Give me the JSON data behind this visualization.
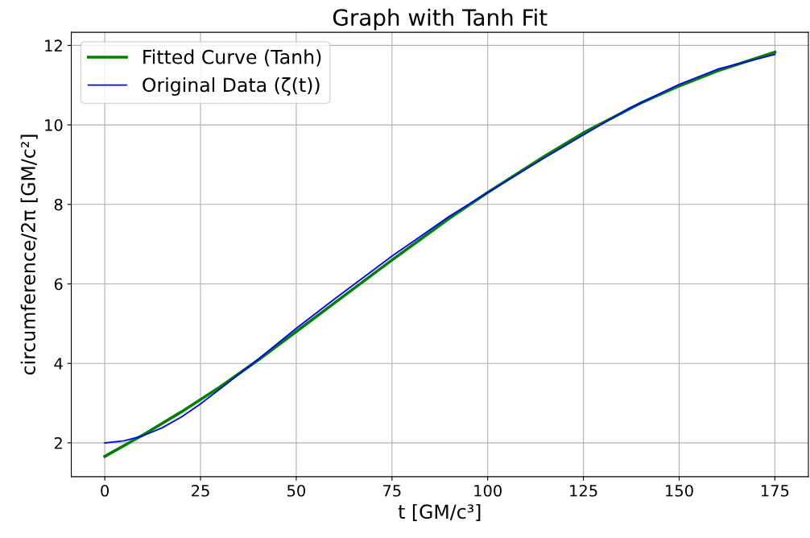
{
  "chart_data": {
    "type": "line",
    "title": "Graph with Tanh Fit",
    "xlabel": "t [GM/c³]",
    "ylabel": "circumference/2π [GM/c²]",
    "xlim": [
      -8.75,
      183.75
    ],
    "xticks": [
      0,
      25,
      50,
      75,
      100,
      125,
      150,
      175
    ],
    "ylim": [
      1.15,
      12.33
    ],
    "yticks": [
      2,
      4,
      6,
      8,
      10,
      12
    ],
    "grid": true,
    "legend": "top left",
    "marker": "none",
    "line_style": "solid",
    "series": [
      {
        "name": "Fitted Curve (Tanh)",
        "color": "#008000",
        "x": [
          0,
          10,
          20,
          30,
          40,
          50,
          60,
          75,
          90,
          100,
          115,
          125,
          140,
          150,
          160,
          175
        ],
        "values": [
          1.66,
          2.2,
          2.78,
          3.4,
          4.08,
          4.8,
          5.52,
          6.6,
          7.65,
          8.3,
          9.22,
          9.8,
          10.55,
          10.98,
          11.36,
          11.83
        ]
      },
      {
        "name": "Original Data (ζ(t))",
        "color": "#0000ff",
        "x": [
          0,
          5,
          10,
          15,
          20,
          25,
          30,
          40,
          50,
          60,
          75,
          90,
          100,
          115,
          125,
          137,
          150,
          160,
          168,
          175
        ],
        "values": [
          2.0,
          2.05,
          2.18,
          2.38,
          2.65,
          2.98,
          3.35,
          4.1,
          4.88,
          5.62,
          6.7,
          7.7,
          8.3,
          9.18,
          9.75,
          10.42,
          11.02,
          11.4,
          11.6,
          11.77
        ]
      }
    ]
  }
}
